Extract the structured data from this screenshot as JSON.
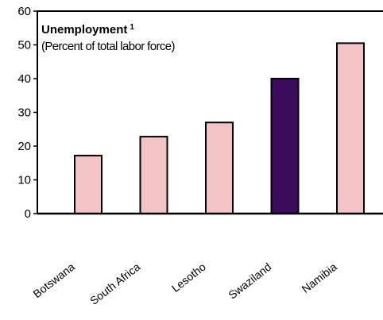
{
  "chart_data": {
    "type": "bar",
    "title": "Unemployment",
    "title_superscript": "1",
    "subtitle": "(Percent of total labor force)",
    "categories": [
      "Botswana",
      "South Africa",
      "Lesotho",
      "Swaziland",
      "Namibia"
    ],
    "values": [
      17.2,
      22.8,
      27.0,
      40.0,
      50.5
    ],
    "ylim": [
      0,
      60
    ],
    "yticks": [
      0,
      10,
      20,
      30,
      40,
      50,
      60
    ],
    "xlabel": "",
    "ylabel": "",
    "grid": false,
    "legend": "none",
    "colors": {
      "bar_default": "#f4c3c5",
      "bar_highlight": "#3b0b5c",
      "bar_border": "#000000",
      "axis": "#000000"
    },
    "highlight_index": 3
  }
}
